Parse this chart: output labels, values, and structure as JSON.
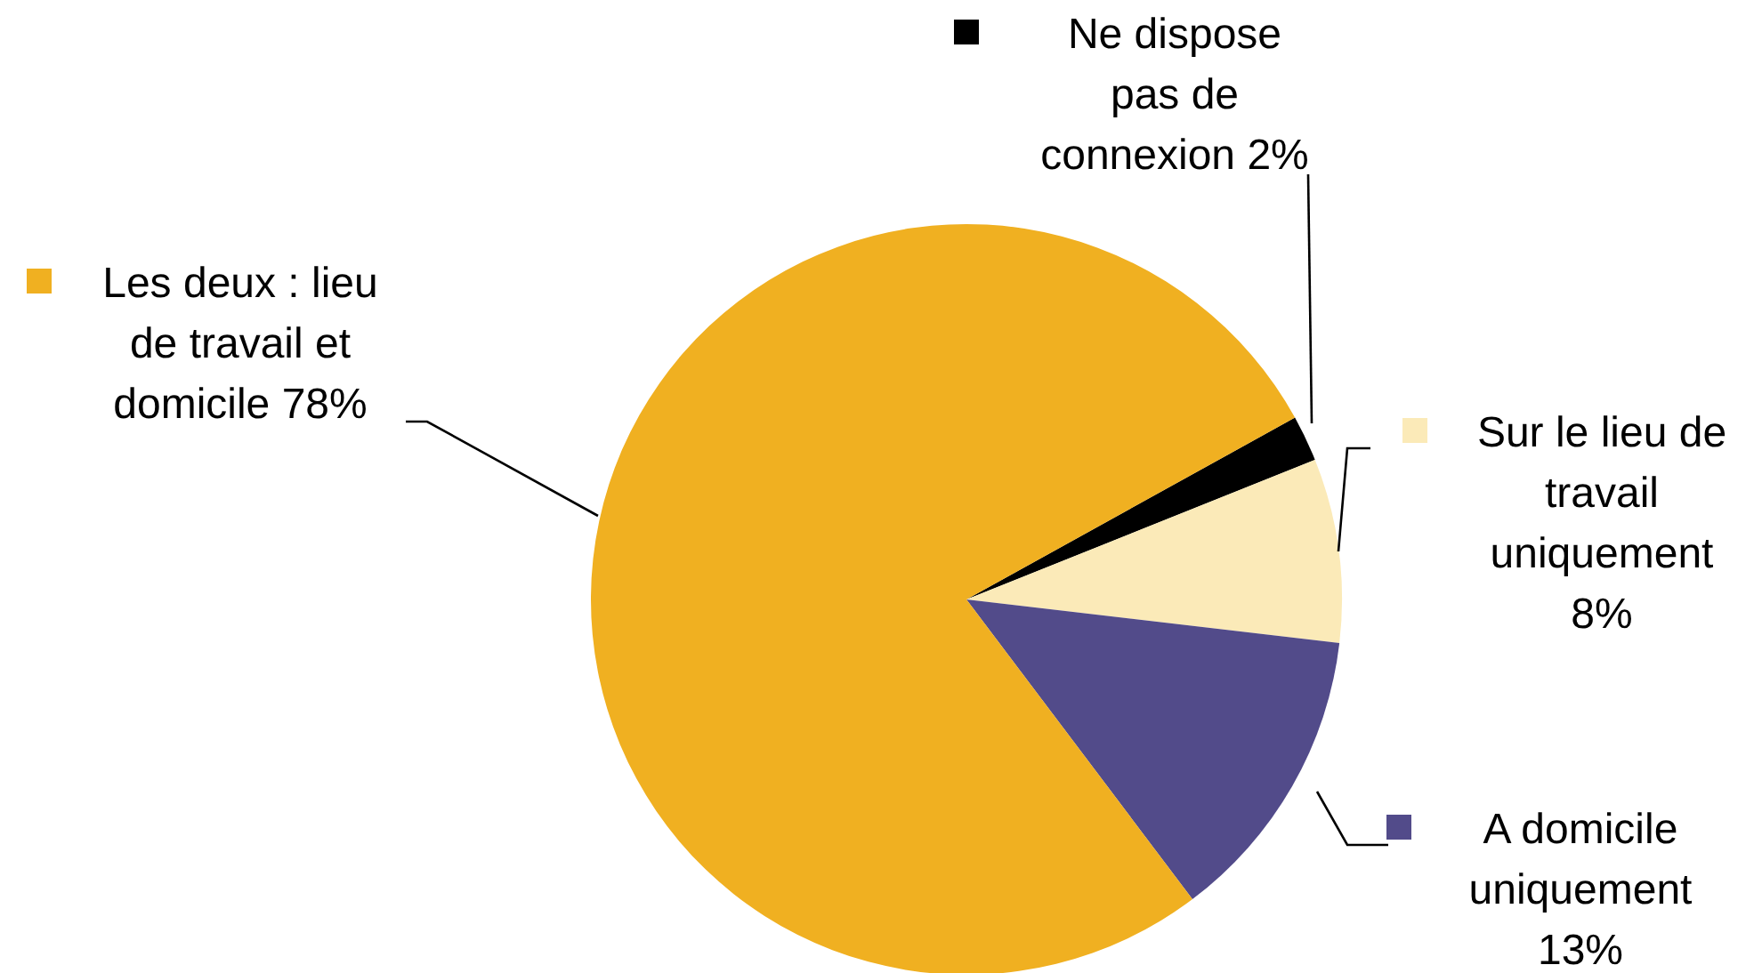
{
  "chart_data": {
    "type": "pie",
    "categories": [
      "Ne dispose pas de connexion",
      "Sur le lieu de travail uniquement",
      "A domicile uniquement",
      "Les deux : lieu de travail et domicile"
    ],
    "values": [
      2,
      8,
      13,
      78
    ],
    "colors": [
      "#000000",
      "#fbeab8",
      "#524b8a",
      "#f0b021"
    ],
    "value_labels": [
      "2%",
      "8%",
      "13%",
      "78%"
    ],
    "legend": "top left"
  }
}
